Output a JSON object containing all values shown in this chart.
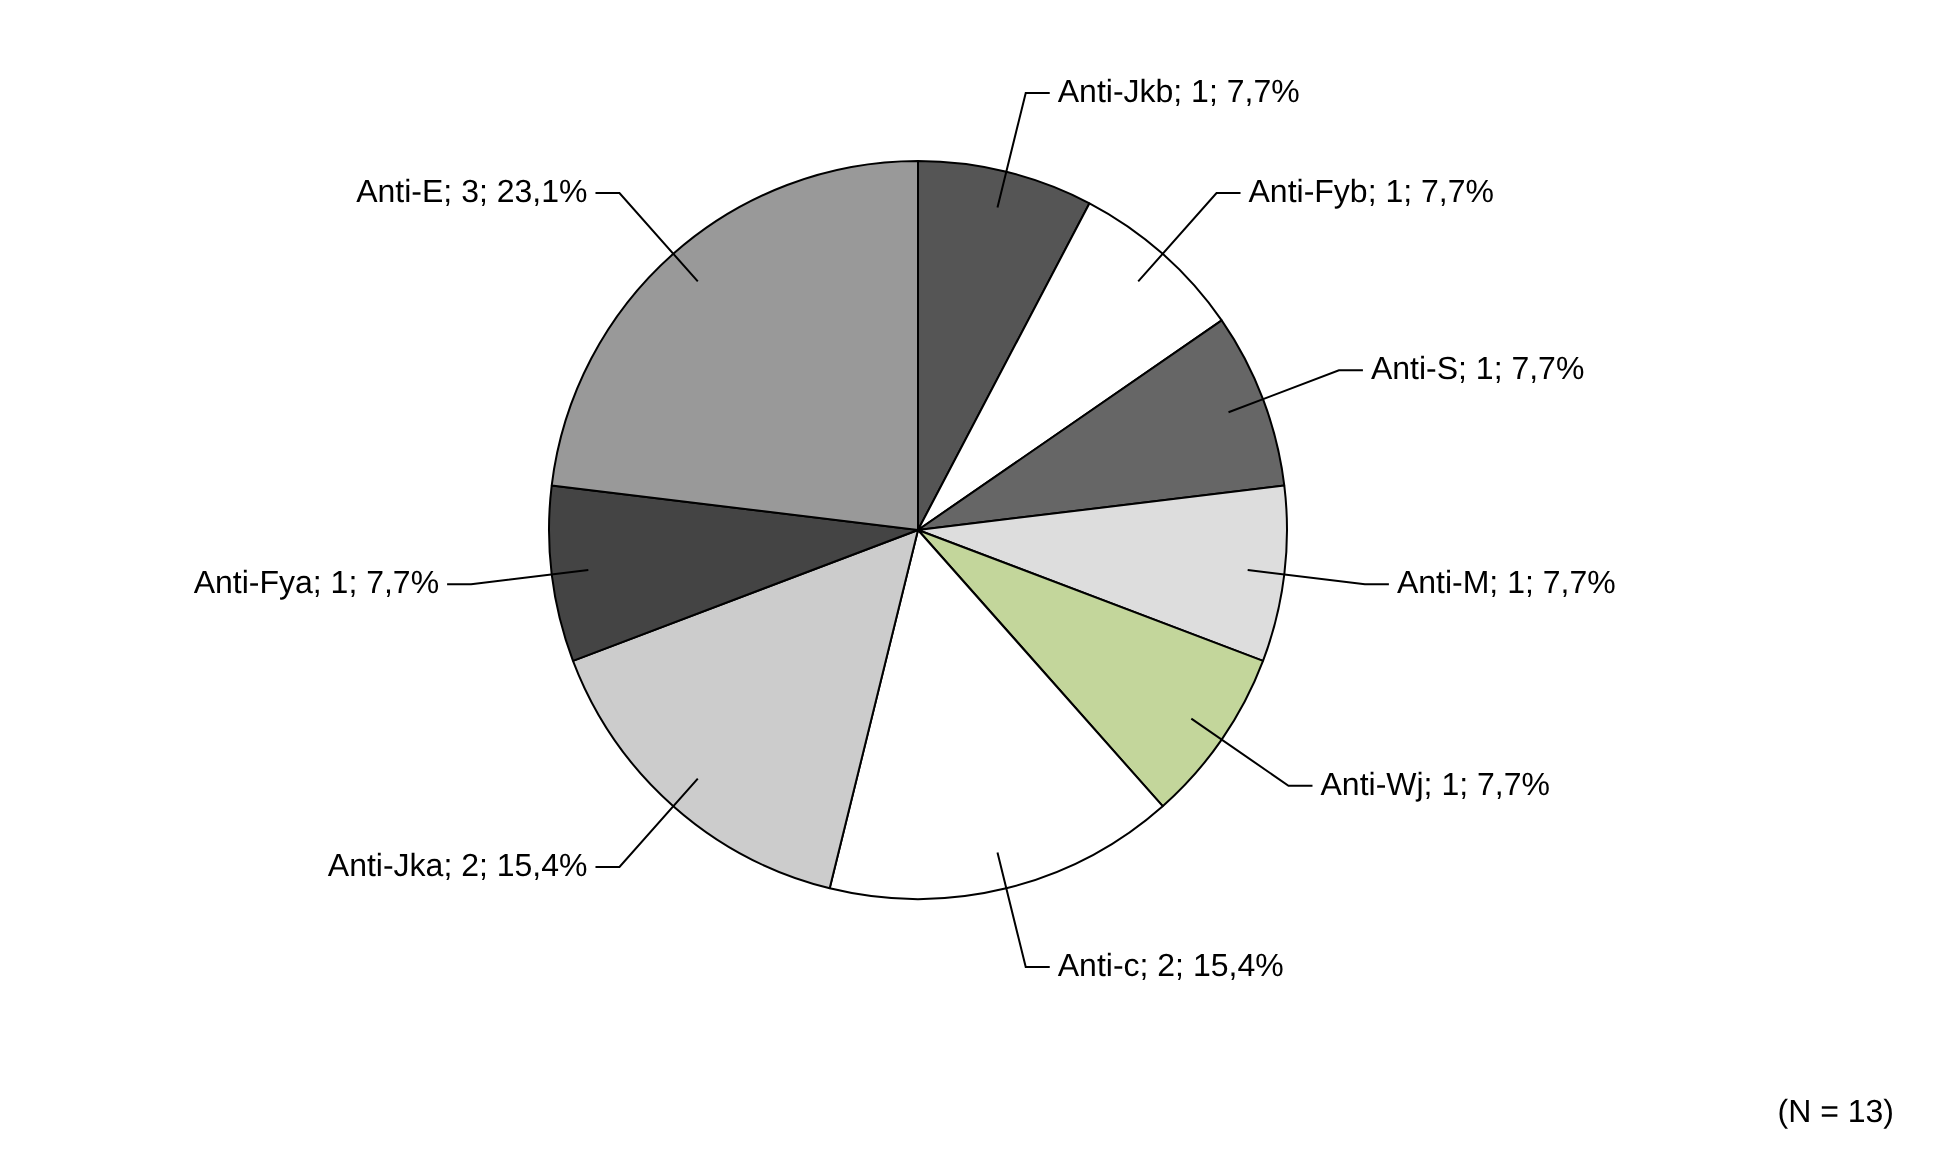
{
  "chart_data": {
    "type": "pie",
    "categories": [
      "Anti-Jkb",
      "Anti-Fyb",
      "Anti-S",
      "Anti-M",
      "Anti-Wj",
      "Anti-c",
      "Anti-Jka",
      "Anti-Fya",
      "Anti-E"
    ],
    "values": [
      1,
      1,
      1,
      1,
      1,
      2,
      2,
      1,
      3
    ],
    "value_labels": [
      "1; 7,7%",
      "1; 7,7%",
      "1; 7,7%",
      "1; 7,7%",
      "1; 7,7%",
      "2; 15,4%",
      "2; 15,4%",
      "1; 7,7%",
      "3; 23,1%"
    ],
    "colors": [
      "#555555",
      "#ffffff",
      "#666666",
      "#dddddd",
      "#c3d69b",
      "#ffffff",
      "#cccccc",
      "#444444",
      "#999999"
    ],
    "annotations": [
      "(N = 13)"
    ]
  }
}
